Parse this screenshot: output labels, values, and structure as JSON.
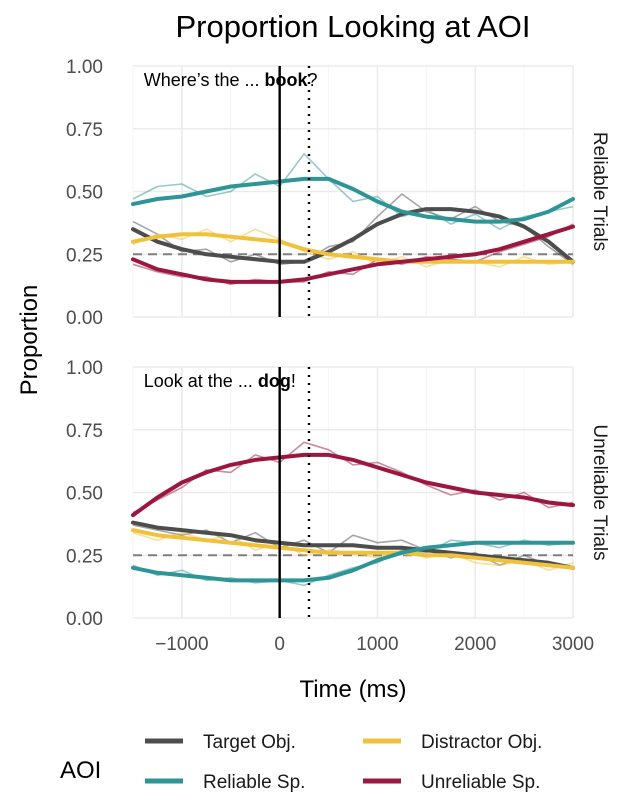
{
  "chart_data": {
    "type": "line",
    "title": "Proportion Looking at AOI",
    "xlabel": "Time (ms)",
    "ylabel": "Proportion",
    "xlim": [
      -1500,
      3000
    ],
    "ylim": [
      0,
      1
    ],
    "x_ticks": [
      -1000,
      0,
      1000,
      2000,
      3000
    ],
    "y_ticks": [
      "0.00",
      "0.25",
      "0.50",
      "0.75",
      "1.00"
    ],
    "chance_level": 0.25,
    "onset_x": 0,
    "offset_x": 300,
    "grid": true,
    "legend": {
      "title": "AOI",
      "placement": "bottom",
      "entries": [
        {
          "name": "Target Obj.",
          "color": "#4d4d4d"
        },
        {
          "name": "Distractor Obj.",
          "color": "#f0c23c"
        },
        {
          "name": "Reliable Sp.",
          "color": "#2e9596"
        },
        {
          "name": "Unreliable Sp.",
          "color": "#9b1740"
        }
      ]
    },
    "x": [
      -1500,
      -1250,
      -1000,
      -750,
      -500,
      -250,
      0,
      250,
      500,
      750,
      1000,
      1250,
      1500,
      1750,
      2000,
      2250,
      2500,
      2750,
      3000
    ],
    "panels": [
      {
        "strip": "Reliable Trials",
        "annotation_pre": "Where’s the ... ",
        "annotation_bold": "book",
        "annotation_post": "?",
        "series": [
          {
            "name": "Target Obj.",
            "color": "#4d4d4d",
            "smooth": [
              0.35,
              0.3,
              0.27,
              0.25,
              0.24,
              0.23,
              0.22,
              0.22,
              0.26,
              0.31,
              0.37,
              0.41,
              0.43,
              0.43,
              0.42,
              0.4,
              0.36,
              0.3,
              0.22
            ],
            "raw": [
              0.38,
              0.33,
              0.26,
              0.27,
              0.22,
              0.25,
              0.21,
              0.22,
              0.28,
              0.3,
              0.4,
              0.49,
              0.42,
              0.39,
              0.44,
              0.38,
              0.36,
              0.28,
              0.21
            ]
          },
          {
            "name": "Distractor Obj.",
            "color": "#f0c23c",
            "smooth": [
              0.3,
              0.32,
              0.33,
              0.33,
              0.32,
              0.31,
              0.3,
              0.27,
              0.25,
              0.24,
              0.23,
              0.22,
              0.22,
              0.22,
              0.22,
              0.22,
              0.22,
              0.22,
              0.22
            ],
            "raw": [
              0.29,
              0.33,
              0.31,
              0.35,
              0.3,
              0.35,
              0.31,
              0.26,
              0.23,
              0.26,
              0.21,
              0.24,
              0.2,
              0.23,
              0.22,
              0.2,
              0.24,
              0.21,
              0.22
            ]
          },
          {
            "name": "Reliable Sp.",
            "color": "#2e9596",
            "smooth": [
              0.45,
              0.47,
              0.48,
              0.5,
              0.52,
              0.53,
              0.54,
              0.55,
              0.55,
              0.51,
              0.46,
              0.42,
              0.4,
              0.39,
              0.38,
              0.38,
              0.39,
              0.42,
              0.47
            ],
            "raw": [
              0.47,
              0.52,
              0.53,
              0.48,
              0.5,
              0.57,
              0.52,
              0.65,
              0.55,
              0.46,
              0.48,
              0.4,
              0.43,
              0.37,
              0.41,
              0.35,
              0.4,
              0.42,
              0.44
            ]
          },
          {
            "name": "Unreliable Sp.",
            "color": "#9b1740",
            "smooth": [
              0.23,
              0.19,
              0.17,
              0.15,
              0.14,
              0.14,
              0.14,
              0.15,
              0.17,
              0.19,
              0.21,
              0.22,
              0.23,
              0.24,
              0.25,
              0.27,
              0.3,
              0.33,
              0.36
            ],
            "raw": [
              0.21,
              0.18,
              0.16,
              0.16,
              0.13,
              0.15,
              0.14,
              0.14,
              0.18,
              0.17,
              0.23,
              0.21,
              0.24,
              0.23,
              0.22,
              0.26,
              0.29,
              0.32,
              0.37
            ]
          }
        ]
      },
      {
        "strip": "Unreliable Trials",
        "annotation_pre": "Look at the ... ",
        "annotation_bold": "dog",
        "annotation_post": "!",
        "series": [
          {
            "name": "Target Obj.",
            "color": "#4d4d4d",
            "smooth": [
              0.38,
              0.36,
              0.35,
              0.34,
              0.33,
              0.31,
              0.3,
              0.29,
              0.29,
              0.29,
              0.28,
              0.28,
              0.27,
              0.26,
              0.25,
              0.24,
              0.23,
              0.22,
              0.2
            ],
            "raw": [
              0.37,
              0.35,
              0.33,
              0.35,
              0.3,
              0.34,
              0.28,
              0.31,
              0.26,
              0.33,
              0.3,
              0.31,
              0.27,
              0.24,
              0.26,
              0.21,
              0.25,
              0.21,
              0.2
            ]
          },
          {
            "name": "Distractor Obj.",
            "color": "#f0c23c",
            "smooth": [
              0.35,
              0.33,
              0.32,
              0.31,
              0.3,
              0.29,
              0.28,
              0.27,
              0.26,
              0.26,
              0.26,
              0.26,
              0.25,
              0.25,
              0.24,
              0.23,
              0.22,
              0.21,
              0.2
            ],
            "raw": [
              0.34,
              0.31,
              0.34,
              0.31,
              0.33,
              0.27,
              0.3,
              0.25,
              0.27,
              0.26,
              0.24,
              0.27,
              0.24,
              0.26,
              0.22,
              0.21,
              0.23,
              0.19,
              0.22
            ]
          },
          {
            "name": "Reliable Sp.",
            "color": "#2e9596",
            "smooth": [
              0.2,
              0.18,
              0.17,
              0.16,
              0.15,
              0.15,
              0.15,
              0.15,
              0.16,
              0.19,
              0.23,
              0.26,
              0.28,
              0.29,
              0.3,
              0.3,
              0.3,
              0.3,
              0.3
            ],
            "raw": [
              0.21,
              0.17,
              0.19,
              0.15,
              0.16,
              0.14,
              0.15,
              0.13,
              0.17,
              0.2,
              0.22,
              0.27,
              0.26,
              0.31,
              0.3,
              0.28,
              0.31,
              0.29,
              0.3
            ]
          },
          {
            "name": "Unreliable Sp.",
            "color": "#9b1740",
            "smooth": [
              0.41,
              0.48,
              0.54,
              0.58,
              0.61,
              0.63,
              0.64,
              0.65,
              0.65,
              0.63,
              0.6,
              0.57,
              0.54,
              0.52,
              0.5,
              0.49,
              0.48,
              0.46,
              0.45
            ],
            "raw": [
              0.42,
              0.47,
              0.52,
              0.59,
              0.58,
              0.65,
              0.62,
              0.7,
              0.67,
              0.61,
              0.62,
              0.58,
              0.53,
              0.49,
              0.51,
              0.47,
              0.5,
              0.44,
              0.46
            ]
          }
        ]
      }
    ]
  }
}
